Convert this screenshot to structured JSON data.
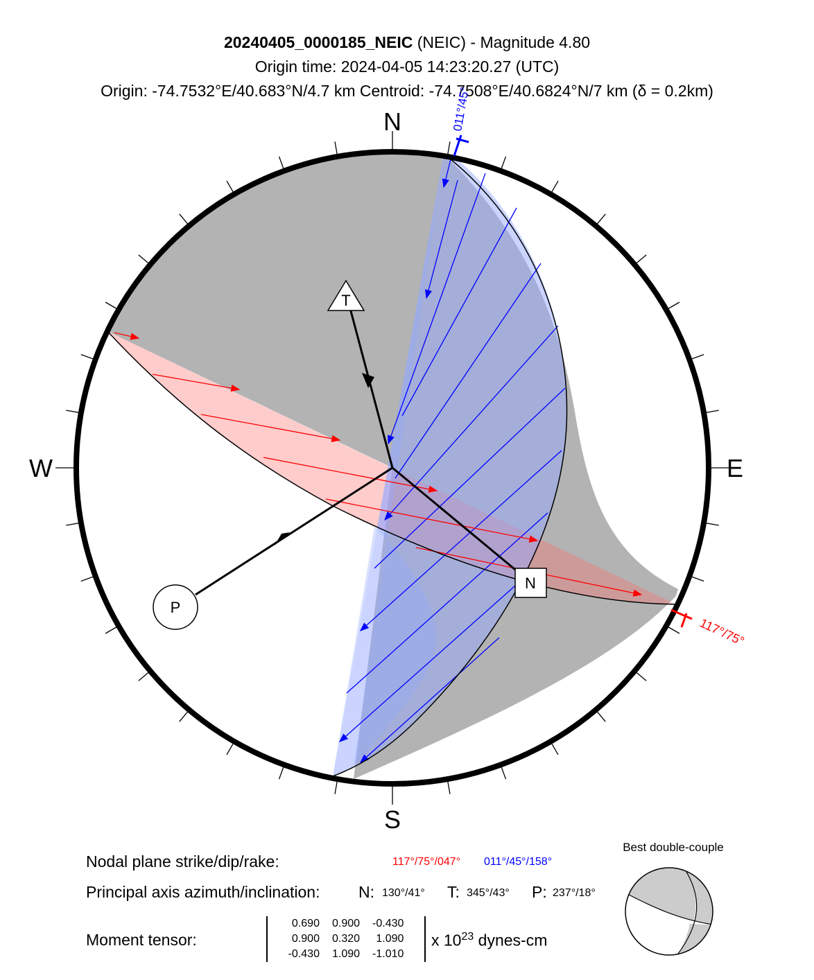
{
  "header": {
    "event_id": "20240405_0000185_NEIC",
    "agency": "(NEIC)",
    "magnitude_text": "- Magnitude 4.80",
    "origin_time": "Origin time: 2024-04-05 14:23:20.27 (UTC)",
    "location": "Origin: -74.7532°E/40.683°N/4.7 km   Centroid: -74.7508°E/40.6824°N/7 km (δ = 0.2km)"
  },
  "compass": {
    "north": "N",
    "south": "S",
    "east": "E",
    "west": "W"
  },
  "plane_labels": {
    "red": "117°/75°",
    "blue": "011°/45°"
  },
  "axes_markers": {
    "t": "T",
    "p": "P",
    "n": "N"
  },
  "info": {
    "nodal_label": "Nodal plane strike/dip/rake:",
    "nodal_red": "117°/75°/047°",
    "nodal_blue": "011°/45°/158°",
    "principal_label": "Principal axis azimuth/inclination:",
    "n_key": "N:",
    "n_val": "130°/41°",
    "t_key": "T:",
    "t_val": "345°/43°",
    "p_key": "P:",
    "p_val": "237°/18°",
    "moment_label": "Moment tensor:",
    "moment_rows": [
      [
        "0.690",
        "0.900",
        "-0.430"
      ],
      [
        "0.900",
        "0.320",
        "1.090"
      ],
      [
        "-0.430",
        "1.090",
        "-1.010"
      ]
    ],
    "unit_prefix": "x 10",
    "unit_exp": "23",
    "unit_suffix": "dynes-cm"
  },
  "bdc_title": "Best double-couple",
  "colors": {
    "compression": "#b3b3b3",
    "red_plane": "#ff0000",
    "blue_plane": "#0000ff",
    "blue_fill": "rgba(150,170,255,0.5)",
    "red_fill": "rgba(255,110,110,0.35)"
  }
}
